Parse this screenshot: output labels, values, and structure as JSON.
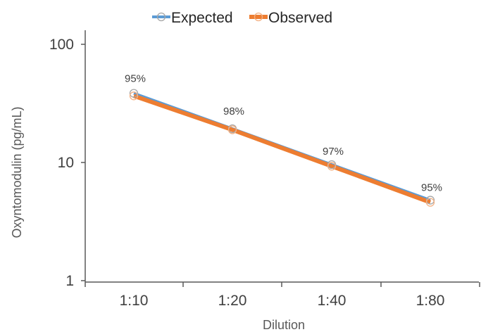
{
  "chart_data": {
    "type": "line",
    "title": "",
    "xlabel": "Dilution",
    "ylabel": "Oxyntomodulin (pg/mL)",
    "yscale": "log",
    "ylim": [
      1,
      100
    ],
    "y_ticks": [
      "1",
      "10",
      "100"
    ],
    "categories": [
      "1:10",
      "1:20",
      "1:40",
      "1:80"
    ],
    "series": [
      {
        "name": "Expected",
        "color": "#5B9BD5",
        "values": [
          38.5,
          19.3,
          9.6,
          4.8
        ]
      },
      {
        "name": "Observed",
        "color": "#ED7D31",
        "values": [
          36.6,
          18.9,
          9.3,
          4.6
        ]
      }
    ],
    "data_labels": [
      "95%",
      "98%",
      "97%",
      "95%"
    ],
    "legend": "top-center",
    "grid": false
  }
}
